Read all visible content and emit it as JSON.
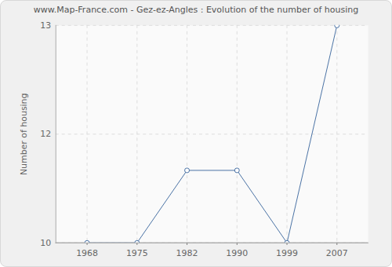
{
  "chart_data": {
    "type": "line",
    "title": "www.Map-France.com - Gez-ez-Angles : Evolution of the number of housing",
    "y_label": "Number of housing",
    "categories": [
      "1968",
      "1975",
      "1982",
      "1990",
      "1999",
      "2007"
    ],
    "values": [
      10,
      10,
      11,
      11,
      10,
      13
    ],
    "ylim": [
      10,
      13
    ],
    "yticks": [
      10,
      {
        "value": 11.5,
        "label": "12"
      },
      13
    ],
    "grid": true,
    "color": "#4a72a4",
    "marker": "circle"
  }
}
